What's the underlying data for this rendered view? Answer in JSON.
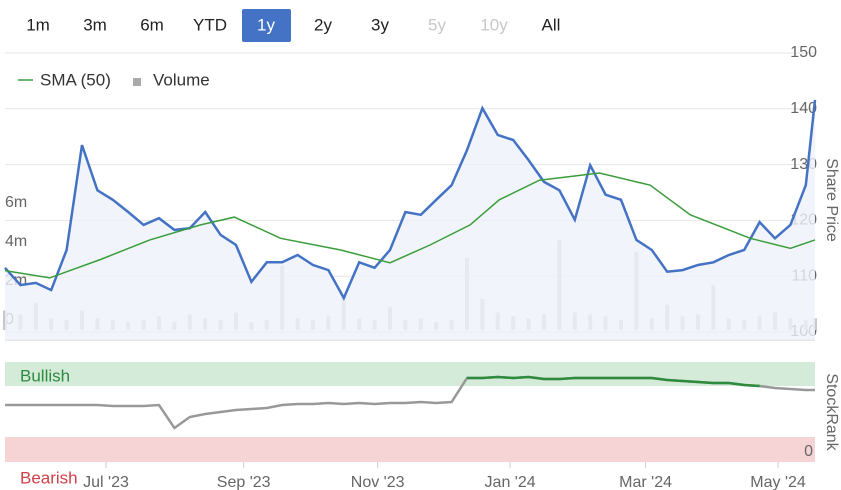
{
  "range_selector": {
    "options": [
      "1m",
      "3m",
      "6m",
      "YTD",
      "1y",
      "2y",
      "3y",
      "5y",
      "10y",
      "All"
    ],
    "selected": 4,
    "disabled": [
      7,
      8
    ]
  },
  "x_axis": {
    "x": [
      0,
      1,
      2,
      3,
      4,
      5,
      6,
      7,
      8,
      9,
      10,
      11,
      12,
      13,
      14,
      15,
      16,
      17,
      18,
      19,
      20,
      21,
      22,
      23,
      24,
      25,
      26,
      27,
      28,
      29,
      30,
      31,
      32,
      33,
      34,
      35,
      36,
      37,
      38,
      39,
      40,
      41,
      42,
      43,
      44,
      45,
      46,
      47,
      48,
      49,
      50,
      51,
      52,
      52.6
    ],
    "xlim": [
      0,
      52.6
    ],
    "xticks": [
      {
        "value": 6.56,
        "label": "Jul '23"
      },
      {
        "value": 15.5,
        "label": "Sep '23"
      },
      {
        "value": 24.2,
        "label": "Nov '23"
      },
      {
        "value": 32.8,
        "label": "Jan '24"
      },
      {
        "value": 41.6,
        "label": "Mar '24"
      },
      {
        "value": 50.2,
        "label": "May '24"
      }
    ]
  },
  "chart_data": [
    {
      "type": "stock",
      "y_label": "Share Price",
      "legend": "upper left",
      "ylim": [
        100,
        150
      ],
      "yticks": [
        100,
        110,
        120,
        130,
        140,
        150
      ],
      "grid": true,
      "y2lim": [
        0,
        14200000
      ],
      "y2ticks": [
        {
          "value": 0,
          "label": "0"
        },
        {
          "value": 2000000,
          "label": "2m"
        },
        {
          "value": 4000000,
          "label": "4m"
        },
        {
          "value": 6000000,
          "label": "6m"
        }
      ],
      "price": {
        "color": "#4472c4",
        "fill": "#eef2fa",
        "values": [
          111.5,
          108.4,
          108.8,
          107.5,
          114.7,
          133.5,
          125.4,
          123.7,
          121.5,
          119.2,
          120.4,
          118.3,
          118.6,
          121.5,
          117.4,
          115.6,
          109,
          112.5,
          112.5,
          113.8,
          112,
          111.1,
          106.1,
          112.5,
          111.5,
          114.7,
          121.5,
          121,
          123.7,
          126.3,
          132.6,
          140.1,
          135.3,
          134.4,
          130.8,
          126.9,
          125.4,
          120.1,
          129.9,
          124.6,
          123.7,
          116.5,
          114.7,
          110.8,
          111.1,
          112,
          112.5,
          113.8,
          114.7,
          119.7,
          116.8,
          119.2,
          126.3,
          141.6
        ]
      },
      "series": [
        {
          "name": "SMA (50)",
          "color": "#3a9d3a",
          "x": [
            0,
            2.9,
            6.2,
            9.4,
            12.7,
            14.9,
            17.9,
            21.8,
            25,
            27.6,
            30.2,
            32.1,
            34.7,
            38.6,
            41.9,
            44.5,
            48.4,
            51,
            52.6
          ],
          "values": [
            111,
            109.7,
            113,
            116.5,
            119.2,
            120.6,
            116.8,
            114.7,
            112.4,
            115.6,
            119.2,
            123.7,
            127.2,
            128.5,
            126.3,
            121,
            116.8,
            115,
            116.5
          ]
        },
        {
          "name": "Volume",
          "color": "#c8c8c8",
          "axis": "y2",
          "values": [
            1000000,
            800000,
            1400000,
            600000,
            500000,
            1000000,
            600000,
            500000,
            400000,
            500000,
            700000,
            400000,
            800000,
            600000,
            500000,
            900000,
            400000,
            500000,
            3300000,
            600000,
            500000,
            700000,
            1800000,
            600000,
            500000,
            1200000,
            500000,
            600000,
            400000,
            500000,
            3700000,
            1600000,
            900000,
            700000,
            600000,
            800000,
            4600000,
            900000,
            800000,
            700000,
            500000,
            4000000,
            600000,
            1300000,
            700000,
            800000,
            2300000,
            600000,
            500000,
            700000,
            900000,
            600000,
            500000,
            600000
          ]
        }
      ]
    },
    {
      "type": "stockrank",
      "y_label": "StockRank",
      "ylim": [
        0,
        100
      ],
      "yticks": [
        0
      ],
      "bands": [
        {
          "label": "Bullish",
          "from": 76,
          "to": 100,
          "color": "#d3ebd8",
          "text_color": "#2e8b3e"
        },
        {
          "label": "Bearish",
          "from": 0,
          "to": 25,
          "color": "#f6d4d6",
          "text_color": "#d04048"
        }
      ],
      "color": "#999999",
      "bullish_color": "#2e8b3e",
      "values": [
        57,
        57,
        57,
        57,
        57,
        57,
        57,
        56,
        56,
        56,
        57,
        34,
        45,
        48,
        50,
        52,
        53,
        54,
        57,
        58,
        58,
        59,
        58,
        59,
        58,
        59,
        59,
        60,
        59,
        60,
        84,
        84,
        85,
        84,
        85,
        83,
        83,
        84,
        84,
        84,
        84,
        84,
        84,
        82,
        81,
        80,
        79,
        79,
        77,
        76,
        74,
        73,
        72,
        72
      ]
    }
  ]
}
